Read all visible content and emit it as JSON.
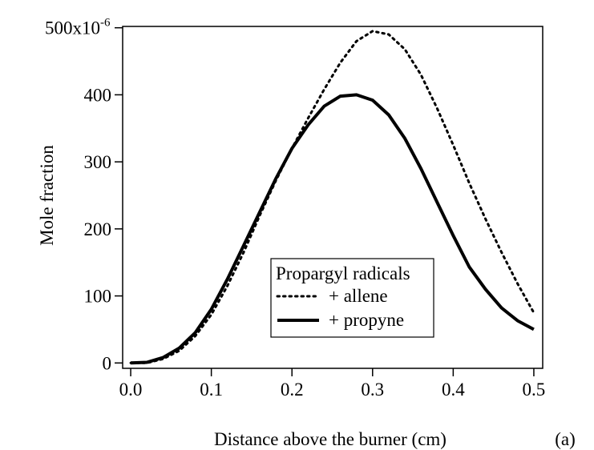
{
  "chart_data": {
    "type": "line",
    "xlabel": "Distance above the burner (cm)",
    "ylabel": "Mole fraction",
    "y_exponent": "-6",
    "panel_label": "(a)",
    "legend_title": "Propargyl radicals",
    "x": [
      0,
      0.02,
      0.04,
      0.06,
      0.08,
      0.1,
      0.12,
      0.14,
      0.16,
      0.18,
      0.2,
      0.22,
      0.24,
      0.26,
      0.28,
      0.3,
      0.32,
      0.34,
      0.36,
      0.38,
      0.4,
      0.42,
      0.44,
      0.46,
      0.48,
      0.5
    ],
    "series": [
      {
        "name": "+ allene",
        "color": "#000000",
        "line_style": "dotted",
        "values": [
          0,
          0,
          6,
          18,
          40,
          72,
          115,
          165,
          220,
          272,
          320,
          365,
          408,
          448,
          480,
          495,
          490,
          468,
          430,
          380,
          325,
          268,
          215,
          165,
          118,
          75
        ]
      },
      {
        "name": "+ propyne",
        "color": "#000000",
        "line_style": "solid",
        "values": [
          0,
          1,
          8,
          22,
          45,
          80,
          125,
          175,
          225,
          275,
          320,
          355,
          383,
          398,
          400,
          392,
          370,
          335,
          290,
          240,
          190,
          143,
          110,
          82,
          63,
          50
        ]
      }
    ],
    "xlim": [
      -0.01,
      0.511
    ],
    "ylim": [
      -8,
      502
    ],
    "xticks": [
      {
        "value": 0,
        "label": "0.0"
      },
      0.1,
      0.2,
      0.3,
      0.4,
      0.5
    ],
    "yticks": [
      0,
      100,
      200,
      300,
      400,
      {
        "value": 500,
        "label": "500x10"
      }
    ]
  }
}
